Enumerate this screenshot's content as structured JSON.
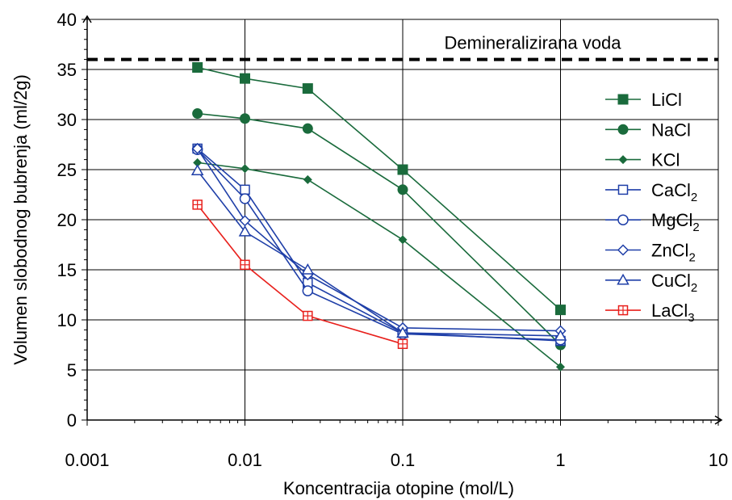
{
  "chart_data": {
    "type": "line",
    "xlabel": "Koncentracija otopine (mol/L)",
    "ylabel": "Volumen slobodnog bubrenja (ml/2g)",
    "x_scale": "log",
    "xlim": [
      0.001,
      10
    ],
    "ylim": [
      0,
      40
    ],
    "xticks": [
      "0.001",
      "0.01",
      "0.1",
      "1",
      "10"
    ],
    "yticks": [
      "0",
      "5",
      "10",
      "15",
      "20",
      "25",
      "30",
      "35",
      "40"
    ],
    "grid": true,
    "legend_position": "right",
    "reference_line": {
      "label": "Demineralizirana voda",
      "y": 36,
      "style": "dashed",
      "color": "#000000"
    },
    "series": [
      {
        "name": "LiCl",
        "sub": "",
        "color": "#1a6b3c",
        "marker": "square-filled",
        "x": [
          0.005,
          0.01,
          0.025,
          0.1,
          1
        ],
        "y": [
          35.2,
          34.1,
          33.1,
          25.0,
          11.0
        ]
      },
      {
        "name": "NaCl",
        "sub": "",
        "color": "#1a6b3c",
        "marker": "circle-filled",
        "x": [
          0.005,
          0.01,
          0.025,
          0.1,
          1
        ],
        "y": [
          30.6,
          30.1,
          29.1,
          23.0,
          7.5
        ]
      },
      {
        "name": "KCl",
        "sub": "",
        "color": "#1a6b3c",
        "marker": "diamond-filled",
        "x": [
          0.005,
          0.01,
          0.025,
          0.1,
          1
        ],
        "y": [
          25.7,
          25.1,
          24.0,
          18.0,
          5.3
        ]
      },
      {
        "name": "CaCl",
        "sub": "2",
        "color": "#1f3fa8",
        "marker": "square-open",
        "x": [
          0.005,
          0.01,
          0.025,
          0.1,
          1
        ],
        "y": [
          27.1,
          23.0,
          13.7,
          8.7,
          7.9
        ]
      },
      {
        "name": "MgCl",
        "sub": "2",
        "color": "#1f3fa8",
        "marker": "circle-open",
        "x": [
          0.005,
          0.01,
          0.025,
          0.1,
          1
        ],
        "y": [
          27.0,
          22.1,
          12.9,
          8.6,
          8.0
        ]
      },
      {
        "name": "ZnCl",
        "sub": "2",
        "color": "#1f3fa8",
        "marker": "diamond-open",
        "x": [
          0.005,
          0.01,
          0.025,
          0.1,
          1
        ],
        "y": [
          27.1,
          19.9,
          14.5,
          9.2,
          8.9
        ]
      },
      {
        "name": "CuCl",
        "sub": "2",
        "color": "#1f3fa8",
        "marker": "triangle-open",
        "x": [
          0.005,
          0.01,
          0.025,
          0.1,
          1
        ],
        "y": [
          24.9,
          18.8,
          15.0,
          8.7,
          8.4
        ]
      },
      {
        "name": "LaCl",
        "sub": "3",
        "color": "#e8201c",
        "marker": "boxcross-open",
        "x": [
          0.005,
          0.01,
          0.025,
          0.1
        ],
        "y": [
          21.5,
          15.5,
          10.4,
          7.6
        ]
      }
    ]
  }
}
